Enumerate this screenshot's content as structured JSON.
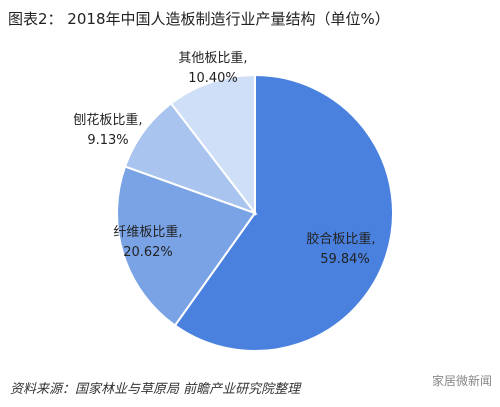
{
  "title": "图表2：  2018年中国人造板制造行业产量结构（单位%）",
  "source": "资料来源：国家林业与草原局 前瞻产业研究院整理",
  "watermark": "家居微新闻",
  "chart_data": {
    "type": "pie",
    "title": "图表2：  2018年中国人造板制造行业产量结构（单位%）",
    "slices": [
      {
        "label": "胶合板比重,",
        "value": 59.84,
        "value_text": "59.84%",
        "color": "#4a81de",
        "label_color": "#222222"
      },
      {
        "label": "纤维板比重,",
        "value": 20.62,
        "value_text": "20.62%",
        "color": "#7aa3e6",
        "label_color": "#222222"
      },
      {
        "label": "刨花板比重,",
        "value": 9.13,
        "value_text": "9.13%",
        "color": "#a9c4ef",
        "label_color": "#222222"
      },
      {
        "label": "其他板比重,",
        "value": 10.4,
        "value_text": "10.40%",
        "color": "#cfdff8",
        "label_color": "#222222"
      }
    ]
  }
}
